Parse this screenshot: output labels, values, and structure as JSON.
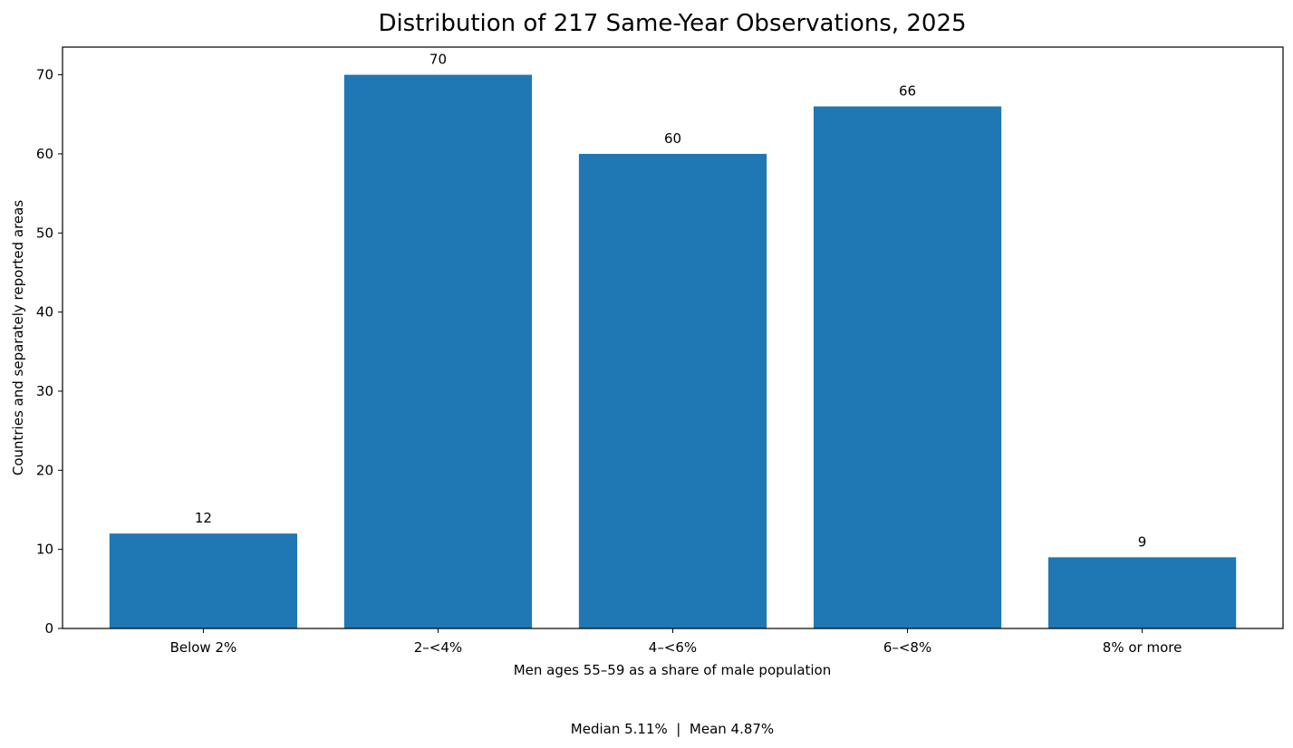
{
  "chart_data": {
    "type": "bar",
    "title": "Distribution of 217 Same-Year Observations, 2025",
    "xlabel": "Men ages 55–59 as a share of male population",
    "ylabel": "Countries and separately reported areas",
    "categories": [
      "Below 2%",
      "2–<4%",
      "4–<6%",
      "6–<8%",
      "8% or more"
    ],
    "values": [
      12,
      70,
      60,
      66,
      9
    ],
    "ylim": [
      0,
      73.5
    ],
    "yticks": [
      0,
      10,
      20,
      30,
      40,
      50,
      60,
      70
    ],
    "grid": false,
    "bar_color": "#1f77b4",
    "footnote": "Median 5.11%  |  Mean 4.87%"
  }
}
